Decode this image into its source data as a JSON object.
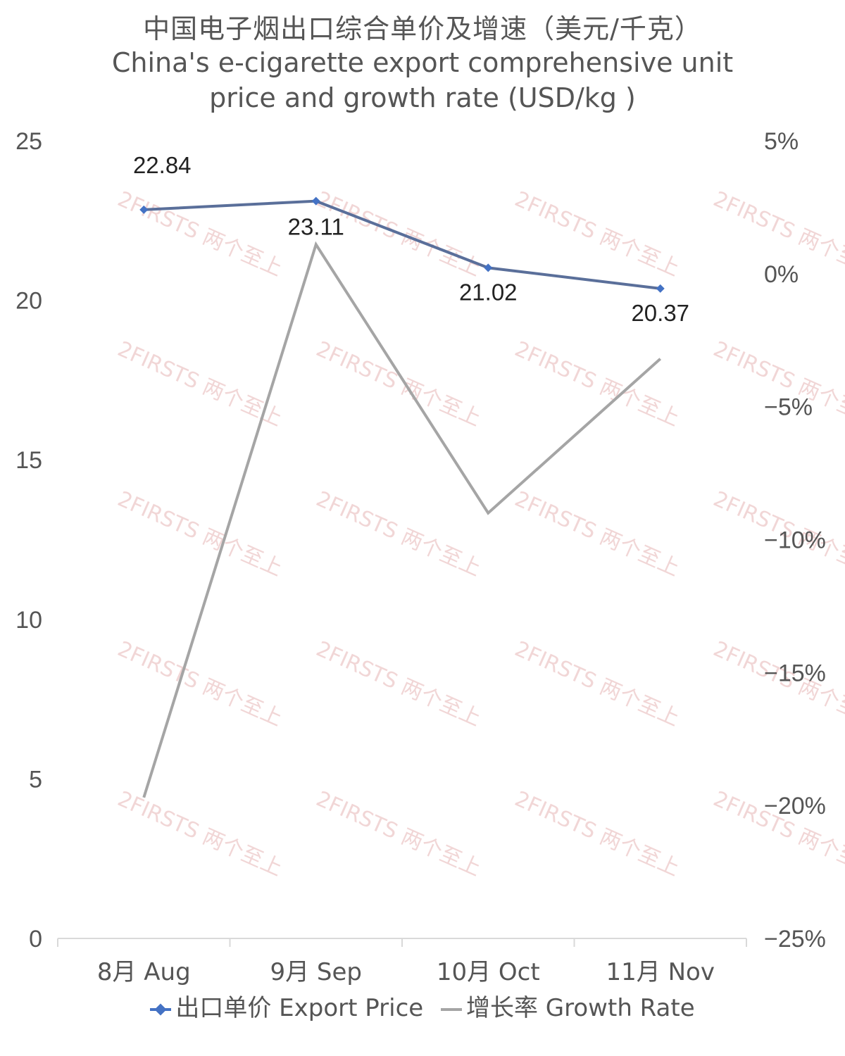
{
  "chart_data": {
    "type": "line",
    "title_zh": "中国电子烟出口综合单价及增速（美元/千克）",
    "title_en_lines": [
      "China's e-cigarette export comprehensive unit",
      "price and growth rate (USD/kg )"
    ],
    "categories": [
      "8月 Aug",
      "9月 Sep",
      "10月 Oct",
      "11月 Nov"
    ],
    "y_left": {
      "range": [
        0,
        25
      ],
      "ticks": [
        "0",
        "5",
        "10",
        "15",
        "20",
        "25"
      ]
    },
    "y_right": {
      "range": [
        -25,
        5
      ],
      "ticks": [
        "−25%",
        "−20%",
        "−15%",
        "−10%",
        "−5%",
        "0%",
        "5%"
      ]
    },
    "grid": false,
    "legend_position": "bottom",
    "series": [
      {
        "name": "出口单价 Export Price",
        "axis": "left",
        "color": "#4472C4",
        "values": [
          22.84,
          23.11,
          21.02,
          20.37
        ],
        "labels": [
          "22.84",
          "23.11",
          "21.02",
          "20.37"
        ]
      },
      {
        "name": "增长率 Growth Rate",
        "axis": "right",
        "color": "#A5A5A5",
        "values": [
          -19.7,
          1.1,
          -9.0,
          -3.2
        ]
      }
    ],
    "watermark": "2FIRSTS 两个至上"
  }
}
